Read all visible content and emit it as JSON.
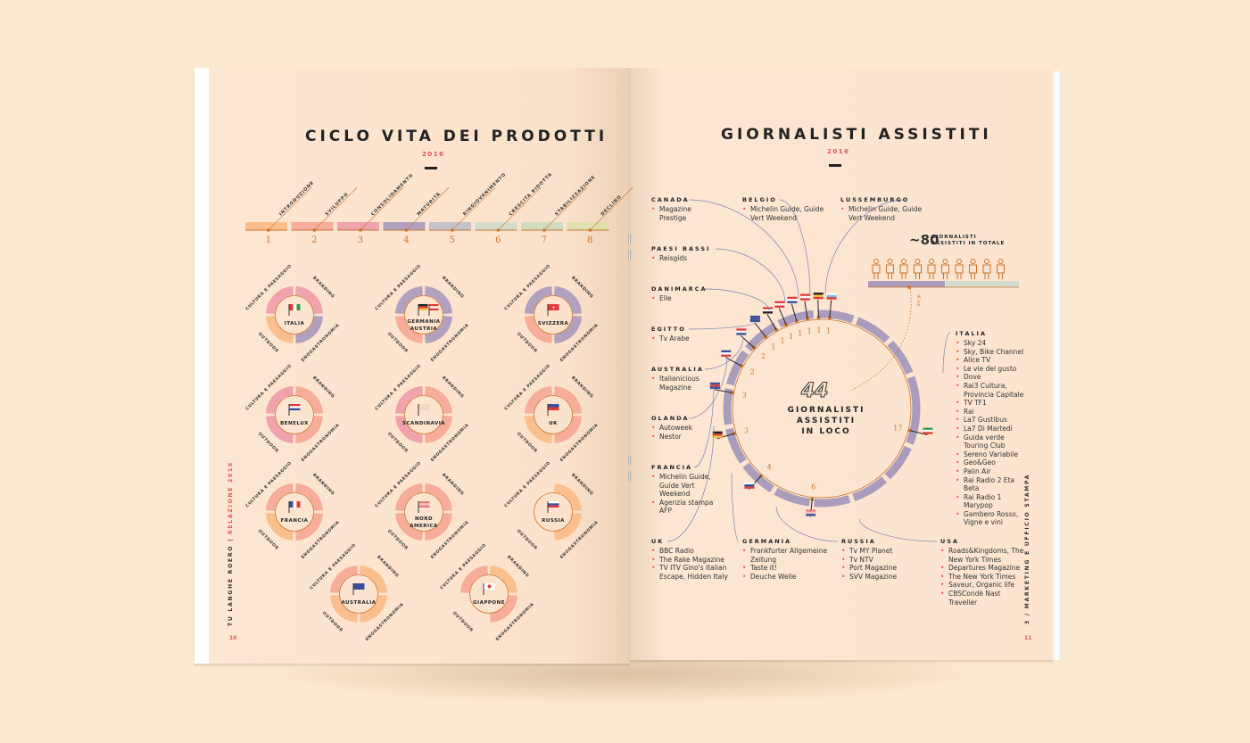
{
  "left_page": {
    "title": "CICLO VITA DEI PRODOTTI",
    "year": "2016",
    "stages": [
      {
        "num": "1",
        "label": "INTRODUZIONE",
        "color": "#fbbf8e"
      },
      {
        "num": "2",
        "label": "SVILUPPO",
        "color": "#f8ad9b"
      },
      {
        "num": "3",
        "label": "CONSOLIDAMENTO",
        "color": "#f0a3ac"
      },
      {
        "num": "4",
        "label": "MATURITÀ",
        "color": "#b1a1bf"
      },
      {
        "num": "5",
        "label": "RINGIOVANIMENTO",
        "color": "#c6c2cc"
      },
      {
        "num": "6",
        "label": "CRESCITA RIDOTTA",
        "color": "#d5dccd"
      },
      {
        "num": "7",
        "label": "STABILIZZAZIONE",
        "color": "#cfdcbf"
      },
      {
        "num": "8",
        "label": "DECLINO",
        "color": "#dfe0ae"
      }
    ],
    "segment_labels": {
      "tl": "CULTURA E PAESAGGIO",
      "tr": "BRANDING",
      "br": "ENOGASTRONOMIA",
      "bl": "OUTDOOR"
    },
    "markets": [
      {
        "name": "ITALIA",
        "name2": "",
        "flag": "italy",
        "stages": {
          "tl": 3,
          "tr": 3,
          "br": 4,
          "bl": 1
        }
      },
      {
        "name": "GERMANIA",
        "name2": "AUSTRIA",
        "flag": "germany-austria",
        "stages": {
          "tl": 4,
          "tr": 4,
          "br": 4,
          "bl": 2
        }
      },
      {
        "name": "SVIZZERA",
        "name2": "",
        "flag": "switzerland",
        "stages": {
          "tl": 4,
          "tr": 4,
          "br": 4,
          "bl": 2
        }
      },
      {
        "name": "BENELUX",
        "name2": "",
        "flag": "benelux",
        "stages": {
          "tl": 3,
          "tr": 2,
          "br": 2,
          "bl": 3
        }
      },
      {
        "name": "SCANDINAVIA",
        "name2": "",
        "flag": "blank",
        "stages": {
          "tl": 3,
          "tr": 2,
          "br": 2,
          "bl": 3
        }
      },
      {
        "name": "UK",
        "name2": "",
        "flag": "uk",
        "stages": {
          "tl": 2,
          "tr": 2,
          "br": 2,
          "bl": 1
        }
      },
      {
        "name": "FRANCIA",
        "name2": "",
        "flag": "france",
        "stages": {
          "tl": 2,
          "tr": 2,
          "br": 2,
          "bl": 1
        }
      },
      {
        "name": "NORD",
        "name2": "AMERICA",
        "flag": "usa",
        "stages": {
          "tl": 2,
          "tr": 2,
          "br": 2,
          "bl": 2
        }
      },
      {
        "name": "RUSSIA",
        "name2": "",
        "flag": "russia",
        "stages": {
          "tl": 0,
          "tr": 1,
          "br": 1,
          "bl": 0
        }
      },
      {
        "name": "AUSTRALIA",
        "name2": "",
        "flag": "australia",
        "stages": {
          "tl": 2,
          "tr": 1,
          "br": 1,
          "bl": 1
        }
      },
      {
        "name": "GIAPPONE",
        "name2": "",
        "flag": "japan",
        "stages": {
          "tl": 2,
          "tr": 1,
          "br": 2,
          "bl": 0
        }
      }
    ],
    "side_text": "TU LANGHE ROERO",
    "side_text_red": "RELAZIONE 2016",
    "page_number": "10"
  },
  "right_page": {
    "title": "GIORNALISTI ASSISTITI",
    "year": "2016",
    "total_prefix": "~80",
    "total_label_1": "GIORNALISTI",
    "total_label_2": "ASSISTITI IN TOTALE",
    "di_cui": "di cui",
    "center_number": "44",
    "center_label": [
      "GIORNALISTI",
      "ASSISTITI",
      "IN LOCO"
    ],
    "ring_values": [
      {
        "country": "LUSSEMBURGO",
        "value": "1"
      },
      {
        "country": "BELGIO",
        "value": "1"
      },
      {
        "country": "CANADA",
        "value": "1"
      },
      {
        "country": "PAESI BASSI",
        "value": "1"
      },
      {
        "country": "DANIMARCA",
        "value": "1"
      },
      {
        "country": "EGITTO",
        "value": "1"
      },
      {
        "country": "AUSTRALIA",
        "value": "1"
      },
      {
        "country": "OLANDA",
        "value": "2"
      },
      {
        "country": "FRANCIA",
        "value": "2"
      },
      {
        "country": "UK",
        "value": "3"
      },
      {
        "country": "GERMANIA",
        "value": "3"
      },
      {
        "country": "RUSSIA",
        "value": "4"
      },
      {
        "country": "USA",
        "value": "6"
      },
      {
        "country": "ITALIA",
        "value": "17"
      }
    ],
    "countries": [
      {
        "name": "CANADA",
        "items": [
          "Magazine Prestige"
        ]
      },
      {
        "name": "BELGIO",
        "items": [
          "Michelin Guide, Guide Vert Weekend"
        ]
      },
      {
        "name": "LUSSEMBURGO",
        "items": [
          "Michelin Guide, Guide Vert Weekend"
        ]
      },
      {
        "name": "PAESI BASSI",
        "items": [
          "Reisgids"
        ]
      },
      {
        "name": "DANIMARCA",
        "items": [
          "Elle"
        ]
      },
      {
        "name": "EGITTO",
        "items": [
          "Tv Arabe"
        ]
      },
      {
        "name": "AUSTRALIA",
        "items": [
          "Italianicious Magazine"
        ]
      },
      {
        "name": "OLANDA",
        "items": [
          "Autoweek",
          "Nestor"
        ]
      },
      {
        "name": "FRANCIA",
        "items": [
          "Michelin Guide, Guide Vert Weekend",
          "Agenzia stampa AFP"
        ]
      },
      {
        "name": "UK",
        "items": [
          "BBC Radio",
          "The Rake Magazine",
          "TV ITV Gino's Italian Escape, Hidden Italy"
        ]
      },
      {
        "name": "GERMANIA",
        "items": [
          "Frankfurter Allgemeine Zeitung",
          "Taste it!",
          "Deuche Welle"
        ]
      },
      {
        "name": "RUSSIA",
        "items": [
          "Tv MY Planet",
          "Tv NTV",
          "Port Magazine",
          "SVV Magazine"
        ]
      },
      {
        "name": "USA",
        "items": [
          "Roads&Kingdoms, The New York Times",
          "Departures Magazine",
          "The New York Times",
          "Saveur, Organic life",
          "CBSCondè Nast Traveller"
        ]
      },
      {
        "name": "ITALIA",
        "items": [
          "Sky 24",
          "Sky, Bike Channel",
          "Alice TV",
          "Le vie del gusto",
          "Dove",
          "Rai3 Cultura, Provincia Capitale",
          "TV TF1",
          "Rai",
          "La7 Gustibus",
          "La7 Di Martedì",
          "Guida verde Touring Club",
          "Sereno Variabile",
          "Geo&Geo",
          "Palin Air",
          "Rai Radio 2 Eta Beta",
          "Rai Radio 1 Marypop",
          "Gambero Rosso, Vigne e vini"
        ]
      }
    ],
    "side_text": "3 / MARKETING E UFFICIO STAMPA",
    "page_number": "11"
  },
  "colors": {
    "background": "#fce8cf",
    "accent_red": "#e8545a",
    "accent_orange": "#c8732e",
    "ring_purple": "#a99cbc",
    "connector_blue": "#7a84b8"
  }
}
